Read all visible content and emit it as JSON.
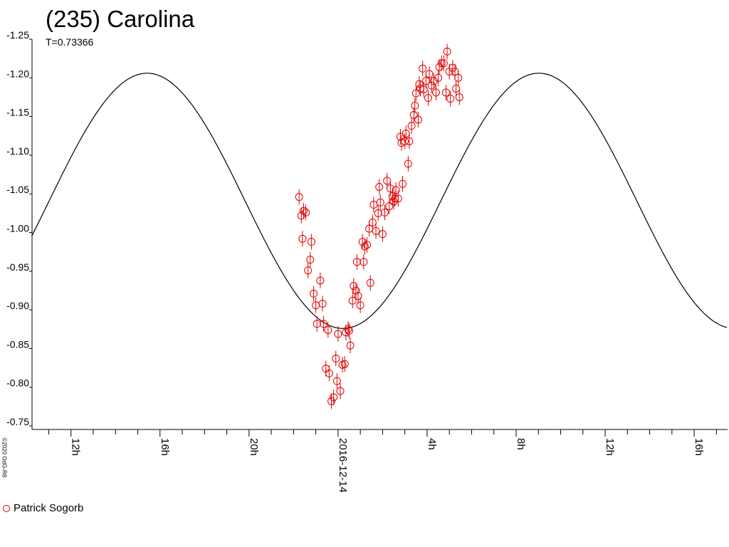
{
  "chart_data": {
    "type": "scatter",
    "title": "(235) Carolina",
    "subtitle": "T=0.73366",
    "y_ticks": [
      "-1.25",
      "-1.20",
      "-1.15",
      "-1.10",
      "-1.05",
      "-1.00",
      "-0.95",
      "-0.90",
      "-0.85",
      "-0.80",
      "-0.75"
    ],
    "ylim": [
      -0.75,
      -1.25
    ],
    "x_tick_labels": [
      {
        "label": "12h",
        "hours": -12
      },
      {
        "label": "16h",
        "hours": -8
      },
      {
        "label": "20h",
        "hours": -4
      },
      {
        "label": "2016-12-14",
        "hours": 0
      },
      {
        "label": "4h",
        "hours": 4
      },
      {
        "label": "8h",
        "hours": 8
      },
      {
        "label": "12h",
        "hours": 12
      },
      {
        "label": "16h",
        "hours": 16
      }
    ],
    "xlim_hours": [
      -13.75,
      17.5
    ],
    "model_curve": {
      "type": "line",
      "period_hours": 17.6,
      "center_mag": -1.041,
      "amplitude_mag": 0.165,
      "minimum_brightness_hours": 0.22,
      "color": "#000000"
    },
    "series": [
      {
        "name": "Patrick Sogorb",
        "marker": "open-circle",
        "color": "#e00000",
        "points": [
          [
            -1.75,
            -1.046
          ],
          [
            -1.65,
            -1.022
          ],
          [
            -1.55,
            -1.028
          ],
          [
            -1.6,
            -0.992
          ],
          [
            -1.45,
            -1.026
          ],
          [
            -1.35,
            -0.951
          ],
          [
            -1.25,
            -0.965
          ],
          [
            -1.2,
            -0.988
          ],
          [
            -1.1,
            -0.921
          ],
          [
            -1.0,
            -0.906
          ],
          [
            -0.95,
            -0.882
          ],
          [
            -0.8,
            -0.938
          ],
          [
            -0.7,
            -0.908
          ],
          [
            -0.65,
            -0.882
          ],
          [
            -0.55,
            -0.824
          ],
          [
            -0.45,
            -0.874
          ],
          [
            -0.4,
            -0.818
          ],
          [
            -0.3,
            -0.782
          ],
          [
            -0.2,
            -0.787
          ],
          [
            -0.1,
            -0.837
          ],
          [
            -0.05,
            -0.808
          ],
          [
            0.0,
            -0.869
          ],
          [
            0.1,
            -0.795
          ],
          [
            0.2,
            -0.829
          ],
          [
            0.3,
            -0.83
          ],
          [
            0.35,
            -0.871
          ],
          [
            0.45,
            -0.875
          ],
          [
            0.5,
            -0.873
          ],
          [
            0.55,
            -0.854
          ],
          [
            0.65,
            -0.912
          ],
          [
            0.7,
            -0.931
          ],
          [
            0.8,
            -0.925
          ],
          [
            0.85,
            -0.962
          ],
          [
            0.9,
            -0.918
          ],
          [
            1.0,
            -0.906
          ],
          [
            1.1,
            -0.988
          ],
          [
            1.15,
            -0.962
          ],
          [
            1.2,
            -0.982
          ],
          [
            1.3,
            -0.984
          ],
          [
            1.4,
            -1.005
          ],
          [
            1.45,
            -0.935
          ],
          [
            1.55,
            -1.013
          ],
          [
            1.6,
            -1.036
          ],
          [
            1.7,
            -1.002
          ],
          [
            1.8,
            -1.025
          ],
          [
            1.85,
            -1.059
          ],
          [
            1.9,
            -1.039
          ],
          [
            2.0,
            -0.998
          ],
          [
            2.1,
            -1.026
          ],
          [
            2.2,
            -1.067
          ],
          [
            2.3,
            -1.034
          ],
          [
            2.35,
            -1.057
          ],
          [
            2.45,
            -1.047
          ],
          [
            2.5,
            -1.04
          ],
          [
            2.55,
            -1.044
          ],
          [
            2.6,
            -1.055
          ],
          [
            2.7,
            -1.044
          ],
          [
            2.8,
            -1.124
          ],
          [
            2.85,
            -1.116
          ],
          [
            2.9,
            -1.063
          ],
          [
            3.0,
            -1.118
          ],
          [
            3.05,
            -1.128
          ],
          [
            3.15,
            -1.089
          ],
          [
            3.2,
            -1.118
          ],
          [
            3.3,
            -1.138
          ],
          [
            3.4,
            -1.152
          ],
          [
            3.45,
            -1.164
          ],
          [
            3.5,
            -1.18
          ],
          [
            3.6,
            -1.146
          ],
          [
            3.65,
            -1.192
          ],
          [
            3.7,
            -1.186
          ],
          [
            3.8,
            -1.212
          ],
          [
            3.85,
            -1.185
          ],
          [
            3.95,
            -1.196
          ],
          [
            4.05,
            -1.174
          ],
          [
            4.1,
            -1.205
          ],
          [
            4.2,
            -1.19
          ],
          [
            4.3,
            -1.196
          ],
          [
            4.4,
            -1.181
          ],
          [
            4.5,
            -1.2
          ],
          [
            4.55,
            -1.214
          ],
          [
            4.65,
            -1.219
          ],
          [
            4.75,
            -1.219
          ],
          [
            4.85,
            -1.181
          ],
          [
            4.9,
            -1.234
          ],
          [
            5.0,
            -1.208
          ],
          [
            5.05,
            -1.173
          ],
          [
            5.15,
            -1.213
          ],
          [
            5.25,
            -1.208
          ],
          [
            5.3,
            -1.186
          ],
          [
            5.4,
            -1.2
          ],
          [
            5.45,
            -1.175
          ]
        ]
      }
    ]
  }
}
